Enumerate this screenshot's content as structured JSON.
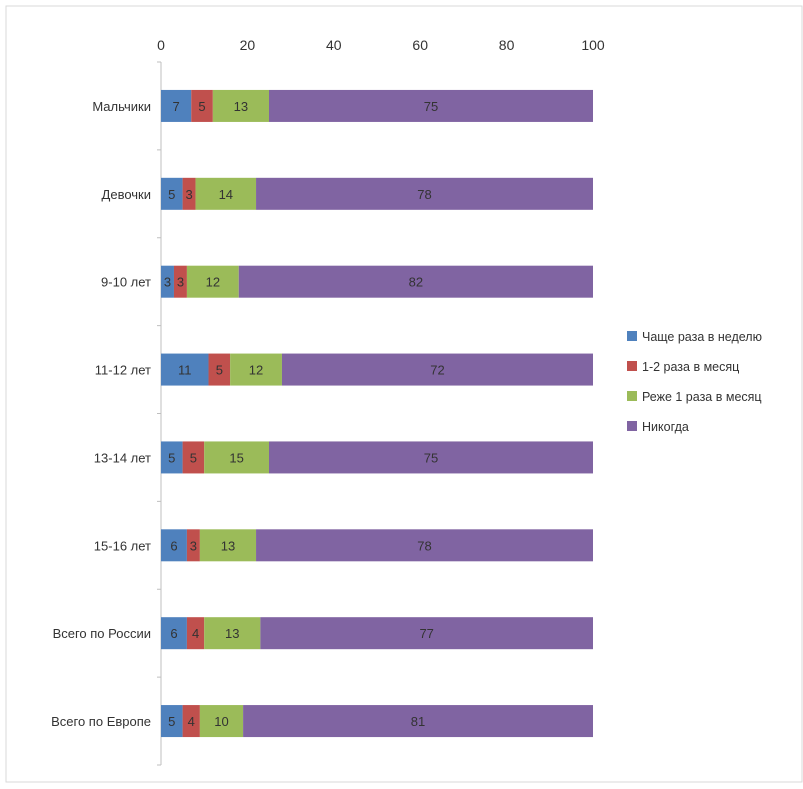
{
  "chart_data": {
    "type": "bar",
    "orientation": "horizontal",
    "stacked": true,
    "title": "",
    "xlabel": "",
    "ylabel": "",
    "xlim": [
      0,
      100
    ],
    "x_ticks": [
      "0",
      "20",
      "40",
      "60",
      "80",
      "100"
    ],
    "x_axis_position": "top",
    "grid": false,
    "legend_position": "right",
    "categories": [
      "Мальчики",
      "Девочки",
      "9-10 лет",
      "11-12 лет",
      "13-14 лет",
      "15-16 лет",
      "Всего по России",
      "Всего по Европе"
    ],
    "series": [
      {
        "name": "Чаще раза в неделю",
        "color": "#4f81bd",
        "values": [
          7,
          5,
          3,
          11,
          5,
          6,
          6,
          5
        ]
      },
      {
        "name": "1-2 раза в месяц",
        "color": "#c0504d",
        "values": [
          5,
          3,
          3,
          5,
          5,
          3,
          4,
          4
        ]
      },
      {
        "name": "Реже 1 раза в месяц",
        "color": "#9bbb59",
        "values": [
          13,
          14,
          12,
          12,
          15,
          13,
          13,
          10
        ]
      },
      {
        "name": "Никогда",
        "color": "#8064a2",
        "values": [
          75,
          78,
          82,
          72,
          75,
          78,
          77,
          81
        ]
      }
    ]
  }
}
